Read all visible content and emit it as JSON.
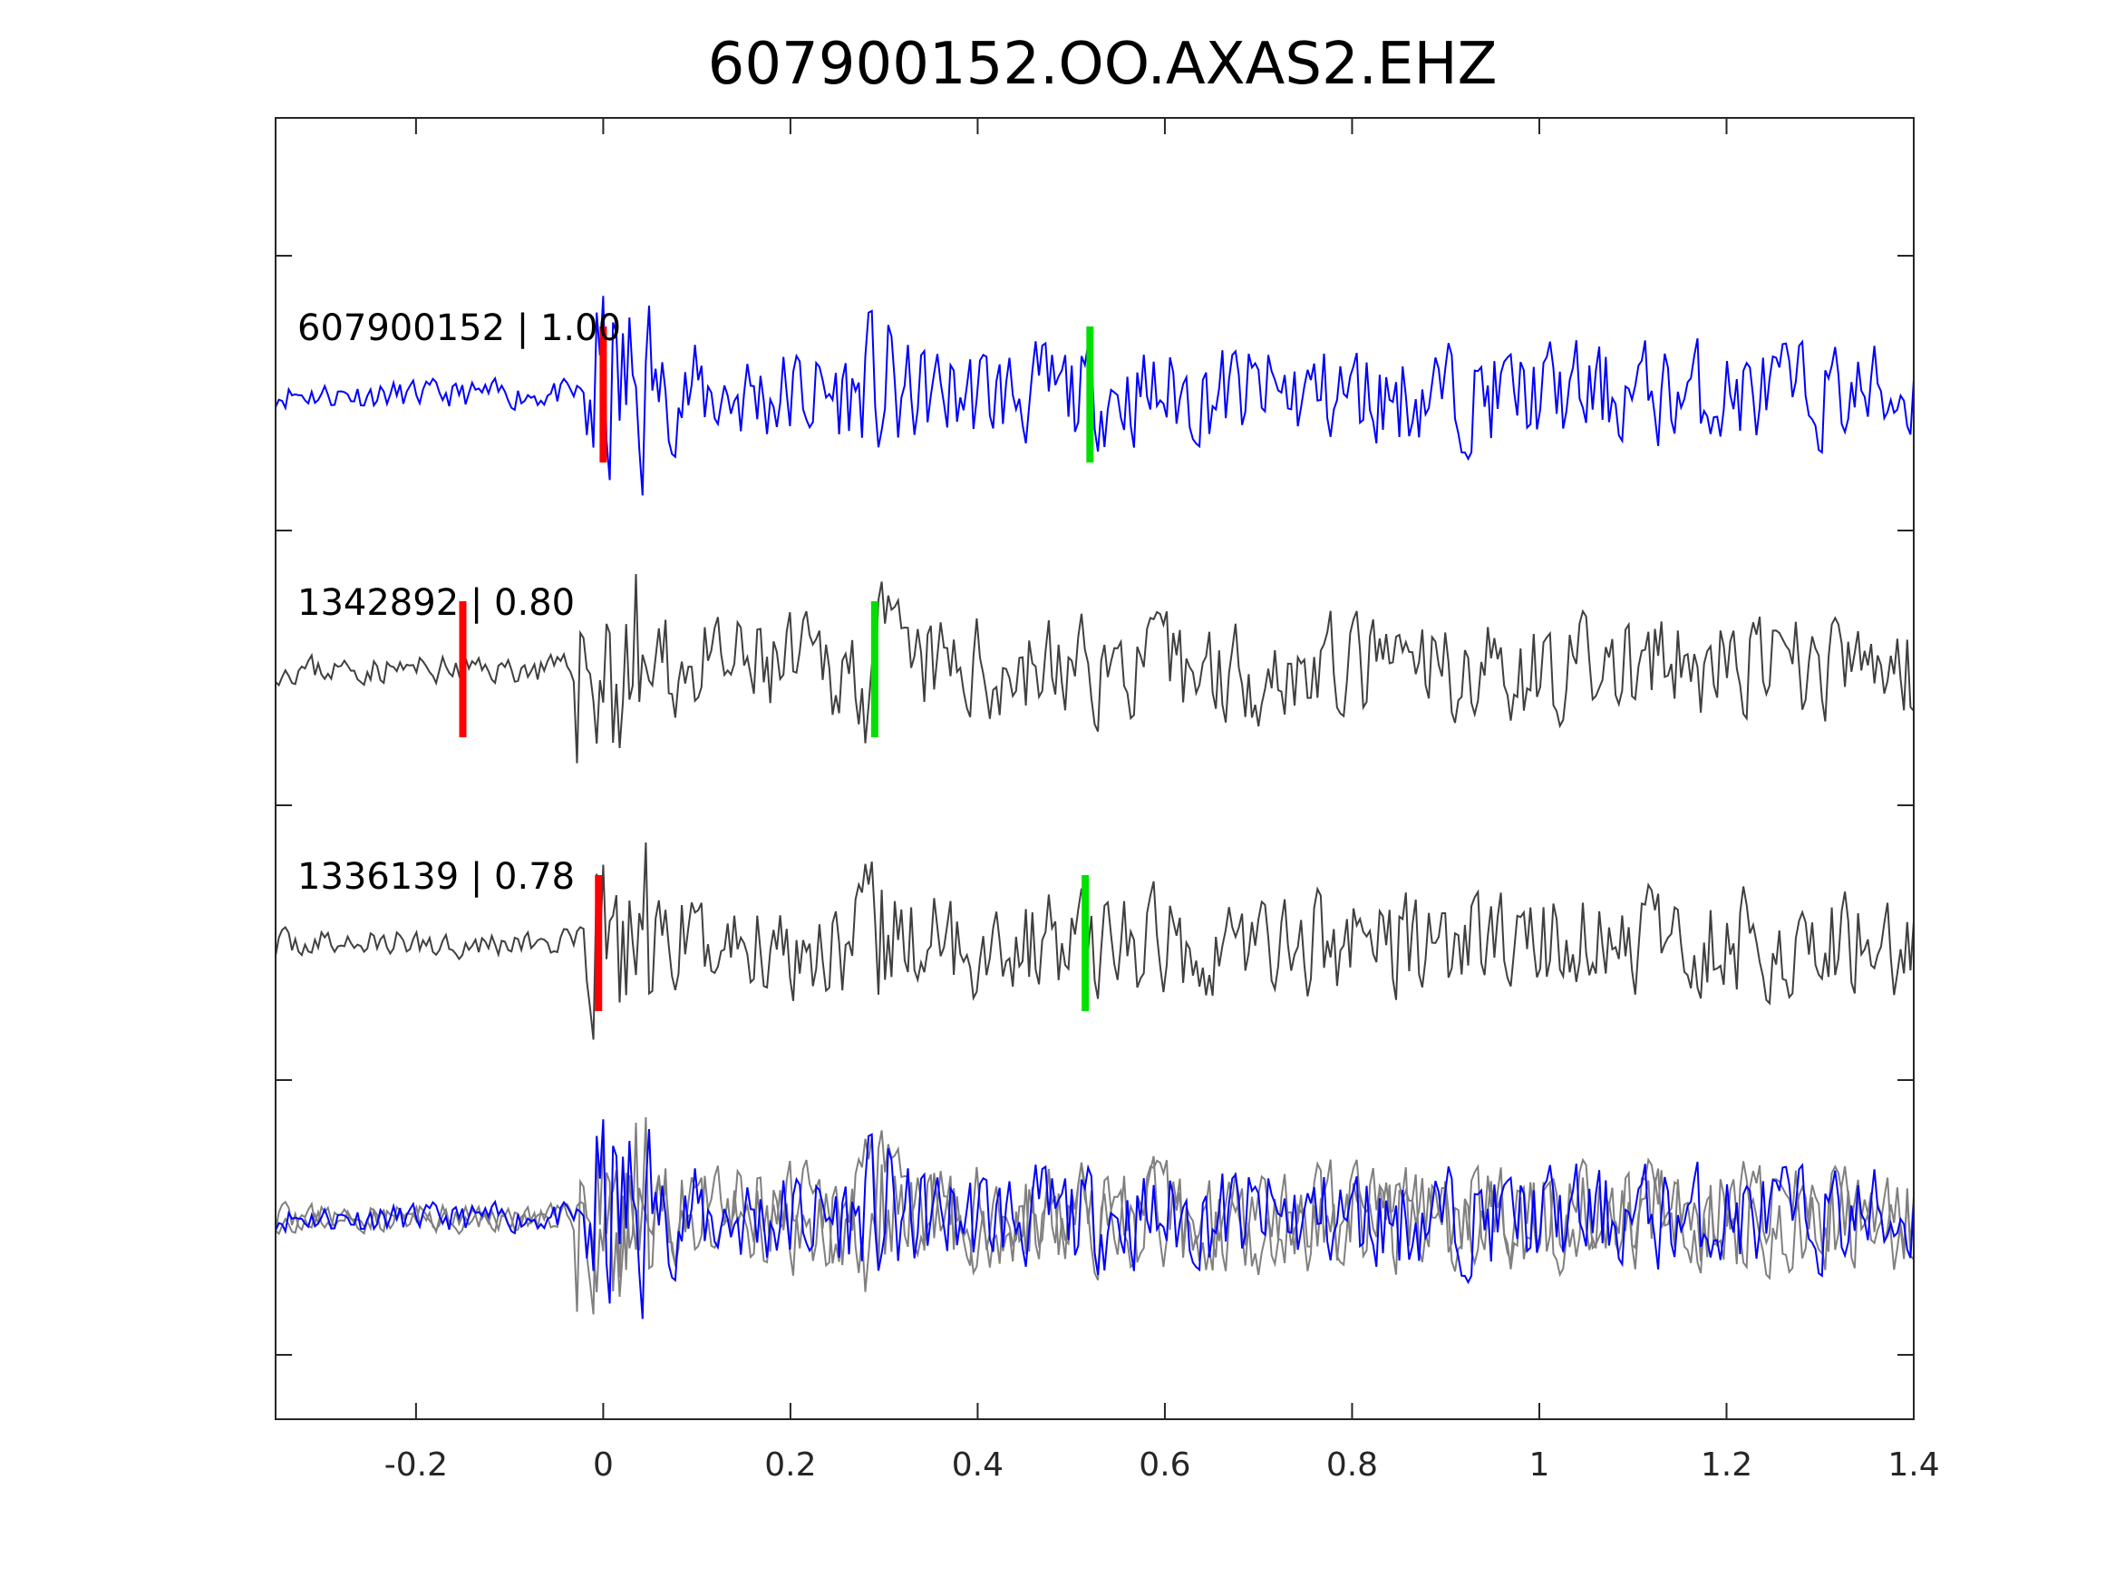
{
  "chart_data": {
    "type": "line",
    "title": "607900152.OO.AXAS2.EHZ",
    "xlabel": "",
    "ylabel": "",
    "xlim": [
      -0.35,
      1.4
    ],
    "xticks": [
      -0.2,
      0,
      0.2,
      0.4,
      0.6,
      0.8,
      1,
      1.2,
      1.4
    ],
    "xtick_labels": [
      "-0.2",
      "0",
      "0.2",
      "0.4",
      "0.6",
      "0.8",
      "1",
      "1.2",
      "1.4"
    ],
    "grid": false,
    "traces": [
      {
        "label": "607900152 | 1.00",
        "color": "#0000ff",
        "red_pick": 0.0,
        "green_pick": 0.52,
        "amplitude": 1.0,
        "seed": 11
      },
      {
        "label": "1342892 | 0.80",
        "color": "#404040",
        "red_pick": -0.15,
        "green_pick": 0.29,
        "amplitude": 1.0,
        "seed": 23
      },
      {
        "label": "1336139 | 0.78",
        "color": "#404040",
        "red_pick": -0.005,
        "green_pick": 0.515,
        "amplitude": 1.0,
        "seed": 37
      }
    ],
    "stack": {
      "colors": [
        "#808080",
        "#808080",
        "#0000ff"
      ]
    },
    "pick_colors": {
      "p": "#ff0000",
      "s": "#00e000"
    }
  }
}
